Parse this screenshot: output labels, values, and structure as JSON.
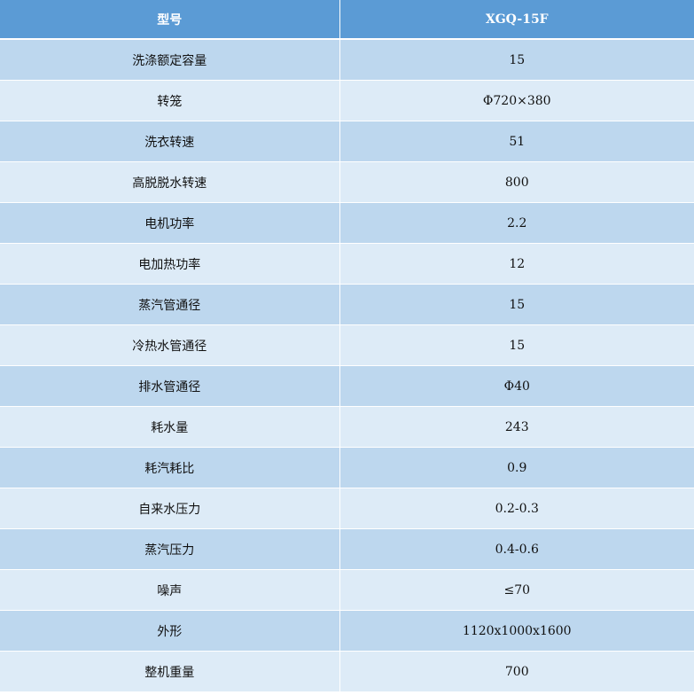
{
  "header": {
    "label": "型号",
    "value": "XGQ-15F"
  },
  "rows": [
    {
      "label": "洗涤额定容量",
      "value": "15"
    },
    {
      "label": "转笼",
      "value": "Φ720×380"
    },
    {
      "label": "洗衣转速",
      "value": "51"
    },
    {
      "label": "高脱脱水转速",
      "value": "800"
    },
    {
      "label": "电机功率",
      "value": "2.2"
    },
    {
      "label": "电加热功率",
      "value": "12"
    },
    {
      "label": "蒸汽管通径",
      "value": "15"
    },
    {
      "label": "冷热水管通径",
      "value": "15"
    },
    {
      "label": "排水管通径",
      "value": "Φ40"
    },
    {
      "label": "耗水量",
      "value": "243"
    },
    {
      "label": "耗汽耗比",
      "value": "0.9"
    },
    {
      "label": "自来水压力",
      "value": "0.2-0.3"
    },
    {
      "label": "蒸汽压力",
      "value": "0.4-0.6"
    },
    {
      "label": "噪声",
      "value": "≤70"
    },
    {
      "label": "外形",
      "value": "1120x1000x1600"
    },
    {
      "label": "整机重量",
      "value": "700"
    }
  ],
  "colors": {
    "header": "#5b9bd5",
    "row_dark": "#bdd7ee",
    "row_light": "#ddebf7"
  }
}
